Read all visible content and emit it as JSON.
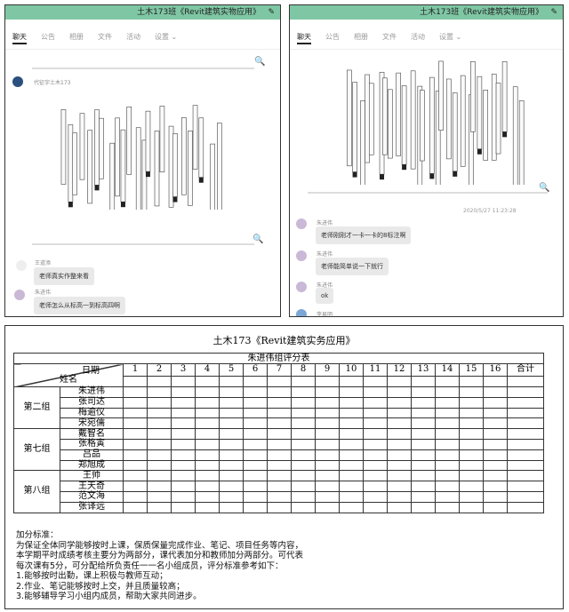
{
  "left_window": {
    "title": "土木173班《Revit建筑实物应用》",
    "edit_icon": "pencil-icon",
    "tabs": [
      "聊天",
      "公告",
      "相册",
      "文件",
      "活动",
      "设置 ⌄"
    ],
    "active_tab": "聊天",
    "accent": "#7fc7a4",
    "top_sender": "代征宇土木173",
    "messages": [
      {
        "sender": "王道添",
        "text": "老师真实作整来看"
      },
      {
        "sender": "朱进伟",
        "text": "老师怎么从标高一到标高四啊"
      }
    ]
  },
  "right_window": {
    "title": "土木173班《Revit建筑实物应用》",
    "tabs": [
      "聊天",
      "公告",
      "相册",
      "文件",
      "活动",
      "设置 ⌄"
    ],
    "active_tab": "聊天",
    "timestamp": "2020/5/27 11:23:28",
    "messages": [
      {
        "sender": "朱进伟",
        "text": "老师刚刚才一卡一卡的8标注啊"
      },
      {
        "sender": "朱进伟",
        "text": "老师能简单说一下就行"
      },
      {
        "sender": "朱进伟",
        "text": "ok"
      },
      {
        "sender": "李易明",
        "text": ""
      }
    ]
  },
  "score_sheet": {
    "title": "土木173《Revit建筑实务应用》",
    "table_title": "朱进伟组评分表",
    "header_date": "日期",
    "header_name": "姓名",
    "columns": [
      "1",
      "2",
      "3",
      "4",
      "5",
      "6",
      "7",
      "8",
      "9",
      "10",
      "11",
      "12",
      "13",
      "14",
      "15",
      "16",
      "合计"
    ],
    "groups": [
      {
        "name": "第二组",
        "members": [
          "朱进伟",
          "张司达",
          "梅逾仪",
          "宋宛儒"
        ]
      },
      {
        "name": "第七组",
        "members": [
          "戴智名",
          "张格寅",
          "吕品",
          "郑旭成"
        ]
      },
      {
        "name": "第八组",
        "members": [
          "王帅",
          "王天奇",
          "范文海",
          "张译远"
        ]
      }
    ],
    "rules": [
      "加分标准：",
      "为保证全体同学能够按时上课，保质保量完成作业、笔记、项目任务等内容，",
      "本学期平时成绩考核主要分为两部分，课代表加分和教师加分两部分。可代表",
      "每次课有5分，可分配给所负责任一一名小组成员，评分标准参考如下：",
      "1.能够按时出勤，课上积极与教师互动；",
      "2.作业、笔记能够按时上交，并且质量较高；",
      "3.能够辅导学习小组内成员，帮助大家共同进步。"
    ]
  }
}
